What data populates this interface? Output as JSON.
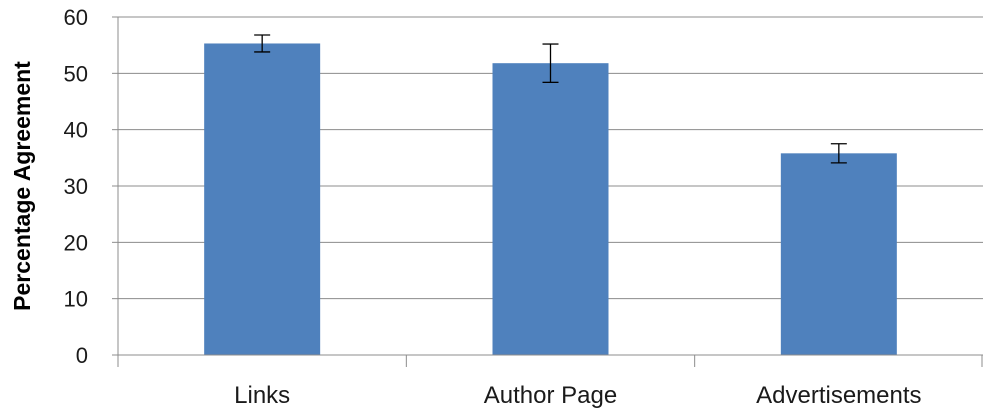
{
  "chart_data": {
    "type": "bar",
    "categories": [
      "Links",
      "Author Page",
      "Advertisements"
    ],
    "values": [
      55.3,
      51.8,
      35.8
    ],
    "error_bars": [
      {
        "low": 53.8,
        "high": 56.8
      },
      {
        "low": 48.4,
        "high": 55.2
      },
      {
        "low": 34.1,
        "high": 37.5
      }
    ],
    "title": "",
    "xlabel": "",
    "ylabel": "Percentage Agreement",
    "ylim": [
      0,
      60
    ],
    "yticks": [
      0,
      10,
      20,
      30,
      40,
      50,
      60
    ],
    "grid": true,
    "bar_color": "#4F81BD",
    "grid_color": "#8C8C8C"
  }
}
